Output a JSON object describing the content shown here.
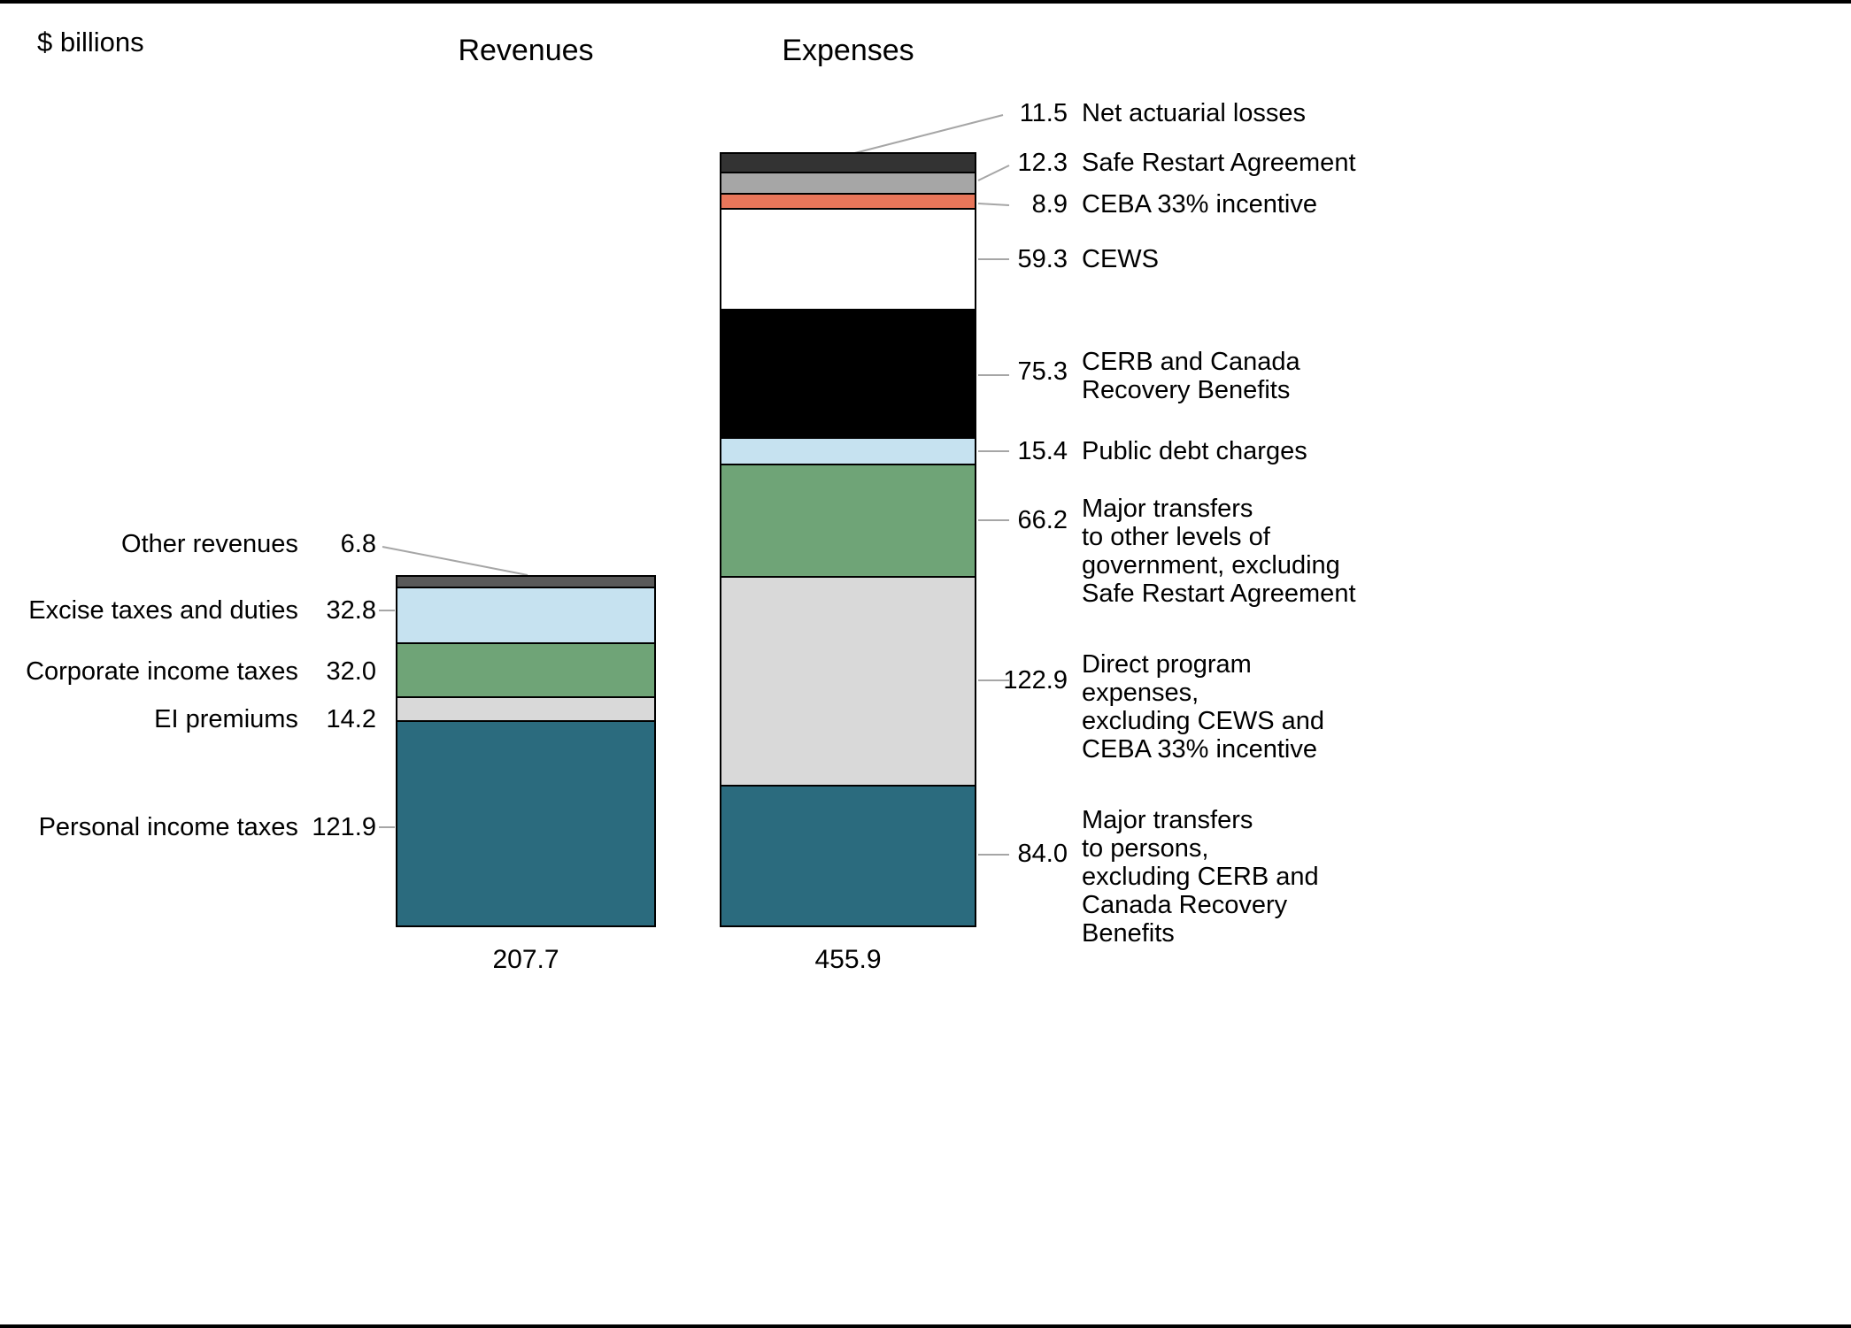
{
  "page": {
    "unit_label": "$ billions"
  },
  "chart_data": {
    "type": "bar",
    "variant": "stacked",
    "title": "",
    "unit": "$ billions",
    "legend": "none",
    "axis": "none",
    "layout_hints": {
      "orientation": "vertical",
      "totals_below_bars": true,
      "labels": "leader-lines"
    },
    "bars": [
      {
        "name": "Revenues",
        "total": 207.7,
        "total_display": "207.7",
        "segments": [
          {
            "label": "Personal income taxes",
            "value": 121.9,
            "display": "121.9",
            "color": "#2b6b7e"
          },
          {
            "label": "EI premiums",
            "value": 14.2,
            "display": "14.2",
            "color": "#d9d9d9"
          },
          {
            "label": "Corporate income taxes",
            "value": 32.0,
            "display": "32.0",
            "color": "#6fa477"
          },
          {
            "label": "Excise taxes and duties",
            "value": 32.8,
            "display": "32.8",
            "color": "#c6e2f0"
          },
          {
            "label": "Other revenues",
            "value": 6.8,
            "display": "6.8",
            "color": "#595959"
          }
        ]
      },
      {
        "name": "Expenses",
        "total": 455.9,
        "total_display": "455.9",
        "segments": [
          {
            "label": "Major transfers to persons, excluding CERB and Canada Recovery Benefits",
            "display_label": "Major transfers\nto persons,\nexcluding CERB and\nCanada Recovery\nBenefits",
            "value": 84.0,
            "display": "84.0",
            "color": "#2b6b7e"
          },
          {
            "label": "Direct program expenses, excluding CEWS and CEBA 33% incentive",
            "display_label": "Direct program\nexpenses,\nexcluding CEWS and\nCEBA 33% incentive",
            "value": 122.9,
            "display": "122.9",
            "color": "#d9d9d9"
          },
          {
            "label": "Major transfers to other levels of government, excluding Safe Restart Agreement",
            "display_label": "Major transfers\nto other levels of\ngovernment, excluding\nSafe Restart Agreement",
            "value": 66.2,
            "display": "66.2",
            "color": "#6fa477"
          },
          {
            "label": "Public debt charges",
            "display_label": "Public debt charges",
            "value": 15.4,
            "display": "15.4",
            "color": "#c6e2f0"
          },
          {
            "label": "CERB and Canada Recovery Benefits",
            "display_label": "CERB and Canada\nRecovery Benefits",
            "value": 75.3,
            "display": "75.3",
            "color": "#000000"
          },
          {
            "label": "CEWS",
            "display_label": "CEWS",
            "value": 59.3,
            "display": "59.3",
            "color": "#ffffff"
          },
          {
            "label": "CEBA 33% incentive",
            "display_label": "CEBA 33% incentive",
            "value": 8.9,
            "display": "8.9",
            "color": "#e8765a"
          },
          {
            "label": "Safe Restart Agreement",
            "display_label": "Safe Restart Agreement",
            "value": 12.3,
            "display": "12.3",
            "color": "#a6a6a6"
          },
          {
            "label": "Net actuarial losses",
            "display_label": "Net actuarial losses",
            "value": 11.5,
            "display": "11.5",
            "color": "#333333"
          }
        ]
      }
    ]
  }
}
